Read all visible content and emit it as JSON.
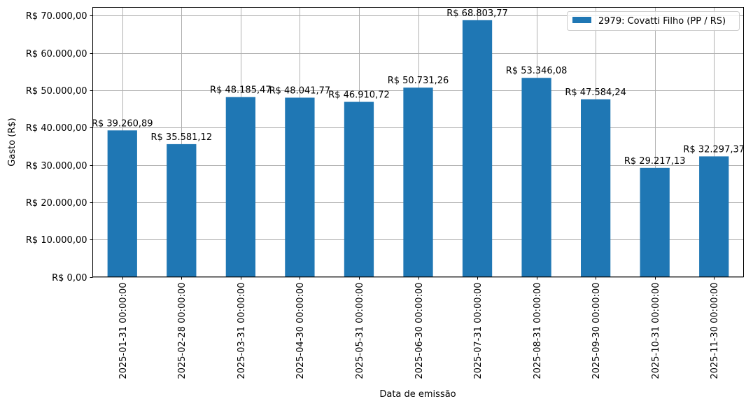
{
  "chart_data": {
    "type": "bar",
    "title": "",
    "xlabel": "Data de emissão",
    "ylabel": "Gasto (R$)",
    "ylim": [
      0,
      72250
    ],
    "grid": true,
    "legend": {
      "position": "upper right",
      "entries": [
        "2979: Covatti Filho (PP / RS)"
      ]
    },
    "categories": [
      "2025-01-31 00:00:00",
      "2025-02-28 00:00:00",
      "2025-03-31 00:00:00",
      "2025-04-30 00:00:00",
      "2025-05-31 00:00:00",
      "2025-06-30 00:00:00",
      "2025-07-31 00:00:00",
      "2025-08-31 00:00:00",
      "2025-09-30 00:00:00",
      "2025-10-31 00:00:00",
      "2025-11-30 00:00:00"
    ],
    "series": [
      {
        "name": "2979: Covatti Filho (PP / RS)",
        "color": "#1f77b4",
        "values": [
          39260.89,
          35581.12,
          48185.47,
          48041.77,
          46910.72,
          50731.26,
          68803.77,
          53346.08,
          47584.24,
          29217.13,
          32297.37
        ],
        "labels": [
          "R$ 39.260,89",
          "R$ 35.581,12",
          "R$ 48.185,47",
          "R$ 48.041,77",
          "R$ 46.910,72",
          "R$ 50.731,26",
          "R$ 68.803,77",
          "R$ 53.346,08",
          "R$ 47.584,24",
          "R$ 29.217,13",
          "R$ 32.297,37"
        ]
      }
    ],
    "yticks": [
      0,
      10000,
      20000,
      30000,
      40000,
      50000,
      60000,
      70000
    ],
    "ytick_labels": [
      "R$ 0,00",
      "R$ 10.000,00",
      "R$ 20.000,00",
      "R$ 30.000,00",
      "R$ 40.000,00",
      "R$ 50.000,00",
      "R$ 60.000,00",
      "R$ 70.000,00"
    ]
  }
}
